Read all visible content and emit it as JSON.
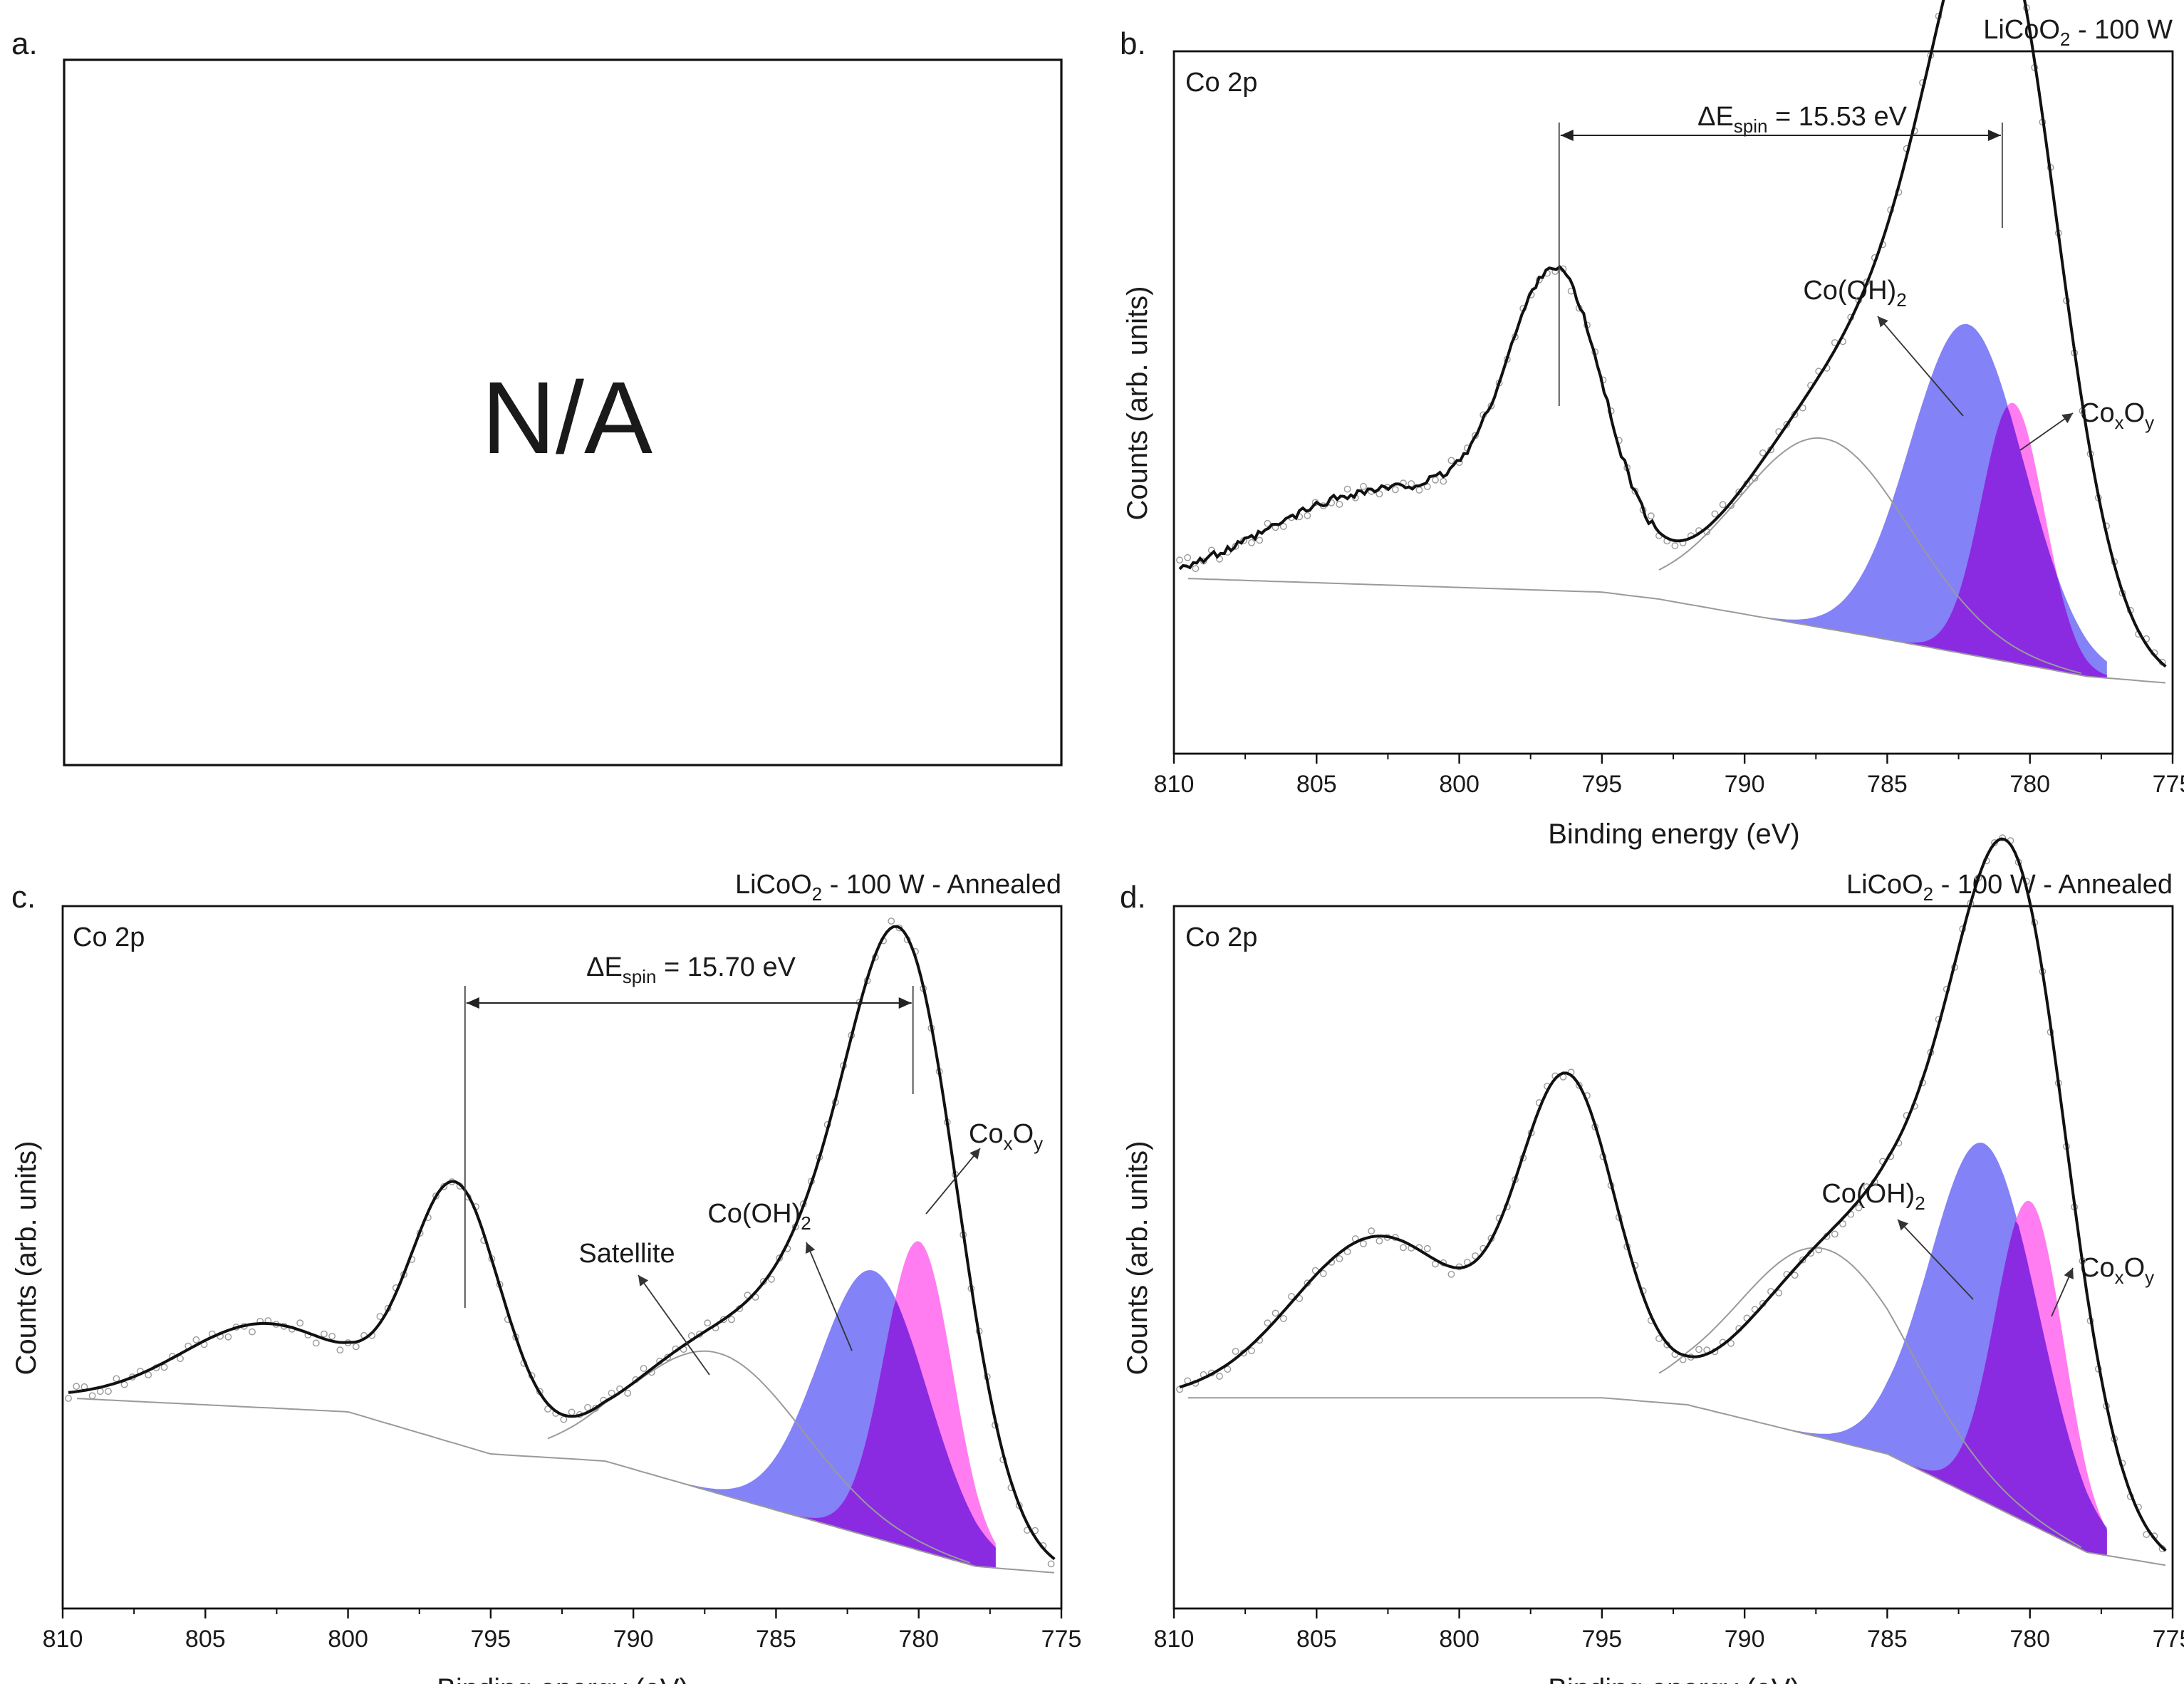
{
  "figure": {
    "panels": [
      "a",
      "b",
      "c",
      "d"
    ]
  },
  "panel_a": {
    "letter": "a.",
    "placeholder": "N/A"
  },
  "panel_b": {
    "letter": "b.",
    "title": {
      "main": "LiCoO",
      "sub": "2",
      "rest": " - 100 W"
    },
    "region": "Co 2p",
    "delta": {
      "delta": "ΔE",
      "sub": "spin",
      "rest": " = 15.53 eV"
    },
    "label_hydroxide": {
      "main": "Co(OH)",
      "sub": "2"
    },
    "label_oxide": {
      "a": "Co",
      "b": "x",
      "c": "O",
      "d": "y"
    }
  },
  "panel_c": {
    "letter": "c.",
    "title": {
      "main": "LiCoO",
      "sub": "2",
      "rest": " - 100 W - Annealed"
    },
    "region": "Co 2p",
    "delta": {
      "delta": "ΔE",
      "sub": "spin",
      "rest": " = 15.70 eV"
    },
    "label_hydroxide": {
      "main": "Co(OH)",
      "sub": "2"
    },
    "label_oxide": {
      "a": "Co",
      "b": "x",
      "c": "O",
      "d": "y"
    },
    "label_satellite": "Satellite"
  },
  "panel_d": {
    "letter": "d.",
    "title": {
      "main": "LiCoO",
      "sub": "2",
      "rest": " - 100 W - Annealed"
    },
    "region": "Co 2p",
    "label_hydroxide": {
      "main": "Co(OH)",
      "sub": "2"
    },
    "label_oxide": {
      "a": "Co",
      "b": "x",
      "c": "O",
      "d": "y"
    }
  },
  "axes": {
    "xlabel": "Binding energy (eV)",
    "ylabel": "Counts (arb. units)",
    "xlim": [
      810,
      775
    ],
    "xticks": [
      "810",
      "805",
      "800",
      "795",
      "790",
      "785",
      "780",
      "775"
    ]
  },
  "colors": {
    "envelope": "#111111",
    "raw_points": "#9a9a9a",
    "background": "#9a9a9a",
    "hydroxide": "#6d6cf5",
    "oxide": "#ff66ee",
    "overlap": "#8a2be2"
  },
  "chart_data": [
    {
      "panel": "b",
      "type": "line",
      "title": "LiCoO2 - 100 W",
      "xlabel": "Binding energy (eV)",
      "ylabel": "Counts (arb. units)",
      "xlim": [
        810,
        775
      ],
      "ylim": [
        0,
        1
      ],
      "series": [
        {
          "name": "Envelope",
          "peaks": [
            [
              780.8,
              0.62,
              2.0
            ],
            [
              782.5,
              0.5,
              2.6
            ],
            [
              787.2,
              0.27,
              3.0
            ],
            [
              796.5,
              0.34,
              1.6
            ],
            [
              797.8,
              0.12,
              2.6
            ],
            [
              803.5,
              0.12,
              3.2
            ]
          ]
        },
        {
          "name": "Co(OH)2",
          "center": 782.2,
          "height": 0.47,
          "width": 2.0
        },
        {
          "name": "CoxOy",
          "center": 780.6,
          "height": 0.37,
          "width": 1.1
        }
      ],
      "background_line": [
        [
          810,
          0.25
        ],
        [
          795,
          0.23
        ],
        [
          793,
          0.22
        ],
        [
          786,
          0.17
        ],
        [
          778,
          0.11
        ],
        [
          775,
          0.1
        ]
      ],
      "delta_E_spin": 15.53,
      "peak_positions": [
        796.5,
        780.97
      ]
    },
    {
      "panel": "c",
      "type": "line",
      "title": "LiCoO2 - 100 W - Annealed",
      "xlabel": "Binding energy (eV)",
      "ylabel": "Counts (arb. units)",
      "xlim": [
        810,
        775
      ],
      "ylim": [
        0,
        1
      ],
      "series": [
        {
          "name": "Envelope",
          "peaks": [
            [
              780.2,
              0.55,
              1.8
            ],
            [
              782.0,
              0.38,
              2.4
            ],
            [
              787.0,
              0.2,
              3.0
            ],
            [
              796.2,
              0.36,
              1.6
            ],
            [
              802.8,
              0.12,
              3.0
            ]
          ]
        },
        {
          "name": "Co(OH)2",
          "center": 781.6,
          "height": 0.38,
          "width": 1.9
        },
        {
          "name": "CoxOy",
          "center": 780.0,
          "height": 0.44,
          "width": 1.2
        },
        {
          "name": "Satellite",
          "center": 787.0,
          "height": 0.2,
          "width": 3.0
        }
      ],
      "background_line": [
        [
          810,
          0.3
        ],
        [
          800,
          0.28
        ],
        [
          795,
          0.22
        ],
        [
          791,
          0.21
        ],
        [
          785,
          0.14
        ],
        [
          778,
          0.06
        ],
        [
          775,
          0.05
        ]
      ],
      "delta_E_spin": 15.7,
      "peak_positions": [
        795.9,
        780.2
      ]
    },
    {
      "panel": "d",
      "type": "line",
      "title": "LiCoO2 - 100 W - Annealed",
      "xlabel": "Binding energy (eV)",
      "ylabel": "Counts (arb. units)",
      "xlim": [
        810,
        775
      ],
      "ylim": [
        0,
        1
      ],
      "series": [
        {
          "name": "Envelope",
          "peaks": [
            [
              780.3,
              0.55,
              1.8
            ],
            [
              781.8,
              0.42,
              2.4
            ],
            [
              786.5,
              0.26,
              3.0
            ],
            [
              796.2,
              0.44,
              1.7
            ],
            [
              802.8,
              0.23,
              3.0
            ]
          ]
        },
        {
          "name": "Co(OH)2",
          "center": 781.6,
          "height": 0.51,
          "width": 1.9
        },
        {
          "name": "CoxOy",
          "center": 780.0,
          "height": 0.46,
          "width": 1.2
        }
      ],
      "background_line": [
        [
          810,
          0.3
        ],
        [
          795,
          0.3
        ],
        [
          792,
          0.29
        ],
        [
          785,
          0.22
        ],
        [
          778,
          0.08
        ],
        [
          775,
          0.06
        ]
      ]
    }
  ]
}
